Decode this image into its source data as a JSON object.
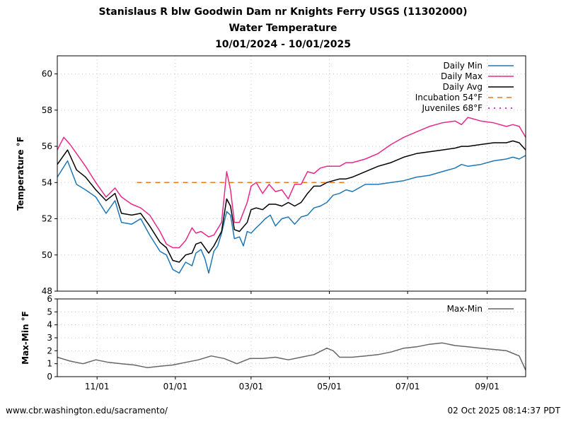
{
  "title_lines": [
    "Stanislaus R blw Goodwin Dam nr Knights Ferry USGS (11302000)",
    "Water Temperature",
    "10/01/2024 - 10/01/2025"
  ],
  "footer": {
    "source": "www.cbr.washington.edu/sacramento/",
    "timestamp": "02 Oct 2025 08:14:37 PDT"
  },
  "x_ticks": [
    "11/01",
    "01/01",
    "03/01",
    "05/01",
    "07/01",
    "09/01"
  ],
  "colors": {
    "daily_min": "#1f77b4",
    "daily_max": "#e7298a",
    "daily_avg": "#000000",
    "incubation": "#e6781e",
    "juveniles": "#c042c0",
    "maxmin": "#666666",
    "grid": "#c8c8c8"
  },
  "chart_data": [
    {
      "type": "line",
      "ylabel": "Temperature °F",
      "ylim": [
        48,
        61
      ],
      "yticks": [
        48,
        50,
        52,
        54,
        56,
        58,
        60
      ],
      "x_unit": "day of water year (0 = 10/01/2024, 365 = 10/01/2025)",
      "xlim": [
        0,
        365
      ],
      "x_tick_days": [
        31,
        92,
        151,
        212,
        273,
        335
      ],
      "legend_position": "top-right",
      "series": [
        {
          "name": "Daily Min",
          "x": [
            0,
            8,
            15,
            22,
            30,
            38,
            45,
            50,
            58,
            65,
            72,
            80,
            85,
            90,
            95,
            100,
            105,
            108,
            112,
            115,
            118,
            122,
            125,
            128,
            132,
            135,
            138,
            142,
            145,
            148,
            151,
            155,
            158,
            162,
            166,
            170,
            175,
            180,
            185,
            190,
            195,
            200,
            205,
            210,
            215,
            220,
            225,
            230,
            240,
            250,
            260,
            270,
            280,
            290,
            300,
            310,
            315,
            320,
            330,
            340,
            350,
            355,
            360,
            365
          ],
          "values": [
            54.3,
            55.2,
            53.9,
            53.6,
            53.2,
            52.3,
            53.0,
            51.8,
            51.7,
            52.0,
            51.1,
            50.2,
            50.0,
            49.2,
            49.0,
            49.6,
            49.4,
            50.1,
            50.3,
            49.8,
            49.0,
            50.2,
            50.5,
            51.2,
            52.4,
            52.2,
            50.9,
            51.0,
            50.5,
            51.3,
            51.2,
            51.5,
            51.7,
            52.0,
            52.2,
            51.6,
            52.0,
            52.1,
            51.7,
            52.1,
            52.2,
            52.6,
            52.7,
            52.9,
            53.3,
            53.4,
            53.6,
            53.5,
            53.9,
            53.9,
            54.0,
            54.1,
            54.3,
            54.4,
            54.6,
            54.8,
            55.0,
            54.9,
            55.0,
            55.2,
            55.3,
            55.4,
            55.3,
            55.5
          ]
        },
        {
          "name": "Daily Max",
          "x": [
            0,
            5,
            10,
            15,
            22,
            30,
            38,
            45,
            50,
            58,
            65,
            72,
            80,
            85,
            90,
            95,
            100,
            105,
            108,
            112,
            118,
            122,
            128,
            132,
            135,
            138,
            142,
            148,
            151,
            155,
            160,
            165,
            170,
            175,
            180,
            185,
            190,
            195,
            200,
            205,
            210,
            215,
            220,
            225,
            230,
            240,
            250,
            260,
            270,
            280,
            290,
            300,
            310,
            315,
            320,
            330,
            340,
            350,
            355,
            360,
            365
          ],
          "values": [
            55.8,
            56.5,
            56.1,
            55.6,
            54.9,
            54.0,
            53.2,
            53.7,
            53.2,
            52.8,
            52.6,
            52.2,
            51.3,
            50.6,
            50.4,
            50.4,
            50.8,
            51.5,
            51.2,
            51.3,
            51.0,
            51.1,
            51.8,
            54.6,
            53.6,
            51.8,
            51.8,
            52.9,
            53.8,
            54.0,
            53.4,
            53.9,
            53.5,
            53.6,
            53.1,
            53.9,
            53.9,
            54.6,
            54.5,
            54.8,
            54.9,
            54.9,
            54.9,
            55.1,
            55.1,
            55.3,
            55.6,
            56.1,
            56.5,
            56.8,
            57.1,
            57.3,
            57.4,
            57.2,
            57.6,
            57.4,
            57.3,
            57.1,
            57.2,
            57.1,
            56.5
          ]
        },
        {
          "name": "Daily Avg",
          "x": [
            0,
            8,
            15,
            22,
            30,
            38,
            45,
            50,
            58,
            65,
            72,
            80,
            85,
            90,
            95,
            100,
            105,
            108,
            112,
            118,
            122,
            128,
            132,
            135,
            138,
            142,
            148,
            151,
            155,
            160,
            165,
            170,
            175,
            180,
            185,
            190,
            195,
            200,
            205,
            210,
            215,
            220,
            225,
            230,
            240,
            250,
            260,
            270,
            280,
            290,
            300,
            310,
            315,
            320,
            330,
            340,
            350,
            355,
            360,
            365
          ],
          "values": [
            55.0,
            55.8,
            54.7,
            54.3,
            53.6,
            53.0,
            53.4,
            52.3,
            52.2,
            52.3,
            51.6,
            50.7,
            50.4,
            49.7,
            49.6,
            50.0,
            50.1,
            50.6,
            50.7,
            50.1,
            50.5,
            51.3,
            53.1,
            52.7,
            51.4,
            51.3,
            51.8,
            52.5,
            52.6,
            52.5,
            52.8,
            52.8,
            52.7,
            52.9,
            52.7,
            52.9,
            53.4,
            53.8,
            53.8,
            54.0,
            54.1,
            54.2,
            54.2,
            54.3,
            54.6,
            54.9,
            55.1,
            55.4,
            55.6,
            55.7,
            55.8,
            55.9,
            56.0,
            56.0,
            56.1,
            56.2,
            56.2,
            56.3,
            56.2,
            55.8
          ]
        },
        {
          "name": "Incubation 54°F",
          "x": [
            62,
            226
          ],
          "values": [
            54,
            54
          ]
        },
        {
          "name": "Juveniles 68°F",
          "x": [],
          "values": []
        }
      ]
    },
    {
      "type": "line",
      "ylabel": "Max-Min °F",
      "ylim": [
        0,
        6
      ],
      "yticks": [
        0,
        1,
        2,
        3,
        4,
        5,
        6
      ],
      "xlim": [
        0,
        365
      ],
      "legend_position": "top-right",
      "series": [
        {
          "name": "Max-Min",
          "x": [
            0,
            10,
            20,
            30,
            40,
            50,
            60,
            70,
            80,
            90,
            100,
            110,
            120,
            130,
            140,
            150,
            160,
            170,
            180,
            190,
            200,
            210,
            215,
            220,
            230,
            240,
            250,
            260,
            270,
            280,
            290,
            300,
            310,
            320,
            330,
            340,
            350,
            355,
            360,
            365
          ],
          "values": [
            1.5,
            1.2,
            1.0,
            1.3,
            1.1,
            1.0,
            0.9,
            0.7,
            0.8,
            0.9,
            1.1,
            1.3,
            1.6,
            1.4,
            1.0,
            1.4,
            1.4,
            1.5,
            1.3,
            1.5,
            1.7,
            2.2,
            2.0,
            1.5,
            1.5,
            1.6,
            1.7,
            1.9,
            2.2,
            2.3,
            2.5,
            2.6,
            2.4,
            2.3,
            2.2,
            2.1,
            2.0,
            1.8,
            1.6,
            0.5
          ]
        }
      ]
    }
  ]
}
